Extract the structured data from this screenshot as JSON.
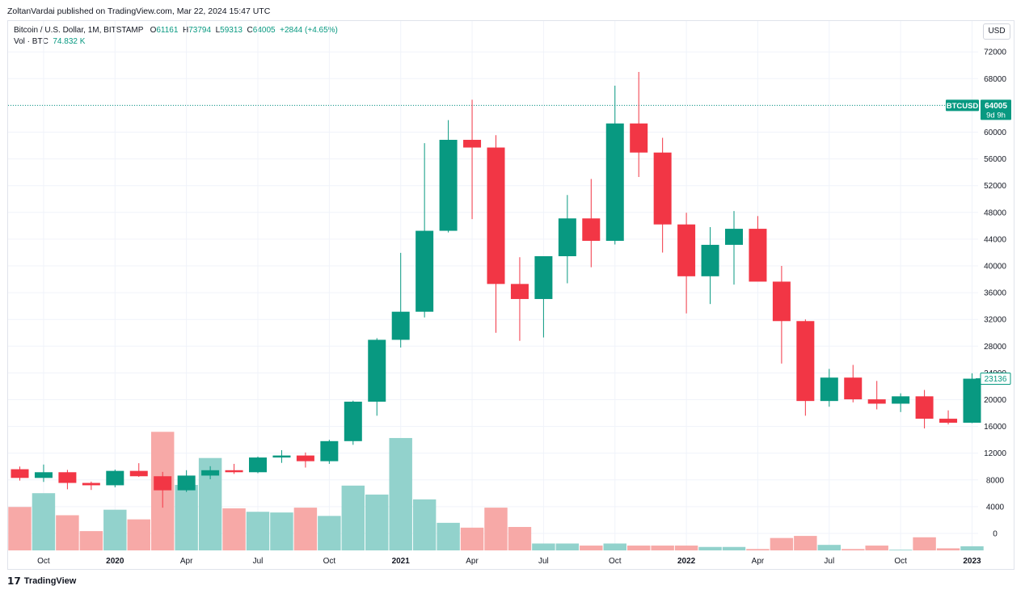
{
  "header": {
    "published": "ZoltanVardai published on TradingView.com, Mar 22, 2024 15:47 UTC"
  },
  "legend": {
    "symbol_line": "Bitcoin / U.S. Dollar, 1M, BITSTAMP",
    "open_label": "O",
    "open": "61161",
    "high_label": "H",
    "high": "73794",
    "low_label": "L",
    "low": "59313",
    "close_label": "C",
    "close": "64005",
    "change": "+2844 (+4.65%)",
    "vol_label": "Vol · BTC",
    "vol_value": "74.832 K"
  },
  "currency_button": "USD",
  "price_tags": {
    "symbol": "BTCUSD",
    "last_price": "64005",
    "countdown": "9d 9h",
    "crosshair_price": "23136"
  },
  "footer": {
    "brand": "TradingView"
  },
  "colors": {
    "up": "#089981",
    "down": "#f23645",
    "up_volume": "#92d2cc",
    "down_volume": "#f7a9a7",
    "grid": "#f0f3fa"
  },
  "chart_data": {
    "type": "candlestick",
    "ylim": [
      0,
      76000
    ],
    "y_ticks": [
      0,
      4000,
      8000,
      12000,
      16000,
      20000,
      24000,
      28000,
      32000,
      36000,
      40000,
      44000,
      48000,
      52000,
      56000,
      60000,
      64000,
      68000,
      72000
    ],
    "x_tick_labels": [
      {
        "index": 1,
        "label": "Oct",
        "bold": false
      },
      {
        "index": 4,
        "label": "2020",
        "bold": true
      },
      {
        "index": 7,
        "label": "Apr",
        "bold": false
      },
      {
        "index": 10,
        "label": "Jul",
        "bold": false
      },
      {
        "index": 13,
        "label": "Oct",
        "bold": false
      },
      {
        "index": 16,
        "label": "2021",
        "bold": true
      },
      {
        "index": 19,
        "label": "Apr",
        "bold": false
      },
      {
        "index": 22,
        "label": "Jul",
        "bold": false
      },
      {
        "index": 25,
        "label": "Oct",
        "bold": false
      },
      {
        "index": 28,
        "label": "2022",
        "bold": true
      },
      {
        "index": 31,
        "label": "Apr",
        "bold": false
      },
      {
        "index": 34,
        "label": "Jul",
        "bold": false
      },
      {
        "index": 37,
        "label": "Oct",
        "bold": false
      },
      {
        "index": 40,
        "label": "2023",
        "bold": true
      }
    ],
    "candles": [
      {
        "o": 9600,
        "h": 10000,
        "l": 7900,
        "c": 8300
      },
      {
        "o": 8300,
        "h": 10300,
        "l": 7700,
        "c": 9150
      },
      {
        "o": 9150,
        "h": 9500,
        "l": 6600,
        "c": 7550
      },
      {
        "o": 7550,
        "h": 7750,
        "l": 6500,
        "c": 7200
      },
      {
        "o": 7200,
        "h": 9550,
        "l": 6900,
        "c": 9350
      },
      {
        "o": 9350,
        "h": 10500,
        "l": 8450,
        "c": 8550
      },
      {
        "o": 8550,
        "h": 9200,
        "l": 3850,
        "c": 6450
      },
      {
        "o": 6450,
        "h": 9450,
        "l": 6200,
        "c": 8650
      },
      {
        "o": 8650,
        "h": 10050,
        "l": 8100,
        "c": 9450
      },
      {
        "o": 9450,
        "h": 10400,
        "l": 8900,
        "c": 9150
      },
      {
        "o": 9150,
        "h": 11500,
        "l": 9000,
        "c": 11350
      },
      {
        "o": 11350,
        "h": 12450,
        "l": 10550,
        "c": 11650
      },
      {
        "o": 11650,
        "h": 12100,
        "l": 9850,
        "c": 10800
      },
      {
        "o": 10800,
        "h": 14000,
        "l": 10400,
        "c": 13800
      },
      {
        "o": 13800,
        "h": 19850,
        "l": 13250,
        "c": 19700
      },
      {
        "o": 19700,
        "h": 29200,
        "l": 17600,
        "c": 28950
      },
      {
        "o": 28950,
        "h": 41950,
        "l": 27800,
        "c": 33150
      },
      {
        "o": 33150,
        "h": 58350,
        "l": 32300,
        "c": 45250
      },
      {
        "o": 45250,
        "h": 61800,
        "l": 45000,
        "c": 58850
      },
      {
        "o": 58850,
        "h": 64850,
        "l": 47000,
        "c": 57700
      },
      {
        "o": 57700,
        "h": 59550,
        "l": 30000,
        "c": 37300
      },
      {
        "o": 37300,
        "h": 41300,
        "l": 28800,
        "c": 35050
      },
      {
        "o": 35050,
        "h": 41450,
        "l": 29300,
        "c": 41450
      },
      {
        "o": 41450,
        "h": 50600,
        "l": 37400,
        "c": 47100
      },
      {
        "o": 47100,
        "h": 53000,
        "l": 39800,
        "c": 43750
      },
      {
        "o": 43750,
        "h": 66950,
        "l": 43200,
        "c": 61300
      },
      {
        "o": 61300,
        "h": 69000,
        "l": 53300,
        "c": 56950
      },
      {
        "o": 56950,
        "h": 59150,
        "l": 42000,
        "c": 46200
      },
      {
        "o": 46200,
        "h": 47950,
        "l": 32900,
        "c": 38450
      },
      {
        "o": 38450,
        "h": 45800,
        "l": 34300,
        "c": 43150
      },
      {
        "o": 43150,
        "h": 48200,
        "l": 37200,
        "c": 45550
      },
      {
        "o": 45550,
        "h": 47450,
        "l": 37700,
        "c": 37650
      },
      {
        "o": 37650,
        "h": 40000,
        "l": 25400,
        "c": 31750
      },
      {
        "o": 31750,
        "h": 32000,
        "l": 17600,
        "c": 19800
      },
      {
        "o": 19800,
        "h": 24600,
        "l": 18950,
        "c": 23300
      },
      {
        "o": 23300,
        "h": 25200,
        "l": 19600,
        "c": 20050
      },
      {
        "o": 20050,
        "h": 22800,
        "l": 18550,
        "c": 19400
      },
      {
        "o": 19400,
        "h": 20950,
        "l": 18150,
        "c": 20500
      },
      {
        "o": 20500,
        "h": 21450,
        "l": 15700,
        "c": 17150
      },
      {
        "o": 17150,
        "h": 18400,
        "l": 16300,
        "c": 16550
      },
      {
        "o": 16550,
        "h": 23950,
        "l": 16500,
        "c": 23136
      }
    ],
    "volume_btc": [
      {
        "v": 63000,
        "up": false
      },
      {
        "v": 83000,
        "up": true
      },
      {
        "v": 51000,
        "up": false
      },
      {
        "v": 28000,
        "up": false
      },
      {
        "v": 59000,
        "up": true
      },
      {
        "v": 45000,
        "up": false
      },
      {
        "v": 172000,
        "up": false
      },
      {
        "v": 95000,
        "up": true
      },
      {
        "v": 134000,
        "up": true
      },
      {
        "v": 61000,
        "up": false
      },
      {
        "v": 56000,
        "up": true
      },
      {
        "v": 55000,
        "up": true
      },
      {
        "v": 62000,
        "up": false
      },
      {
        "v": 50000,
        "up": true
      },
      {
        "v": 94000,
        "up": true
      },
      {
        "v": 81000,
        "up": true
      },
      {
        "v": 163000,
        "up": true
      },
      {
        "v": 74000,
        "up": true
      },
      {
        "v": 40000,
        "up": true
      },
      {
        "v": 33000,
        "up": false
      },
      {
        "v": 62000,
        "up": false
      },
      {
        "v": 34000,
        "up": false
      },
      {
        "v": 10000,
        "up": true
      },
      {
        "v": 10000,
        "up": true
      },
      {
        "v": 7000,
        "up": false
      },
      {
        "v": 10000,
        "up": true
      },
      {
        "v": 7000,
        "up": false
      },
      {
        "v": 7000,
        "up": false
      },
      {
        "v": 7000,
        "up": false
      },
      {
        "v": 5000,
        "up": true
      },
      {
        "v": 5000,
        "up": true
      },
      {
        "v": 2000,
        "up": false
      },
      {
        "v": 18000,
        "up": false
      },
      {
        "v": 21000,
        "up": false
      },
      {
        "v": 8000,
        "up": true
      },
      {
        "v": 2000,
        "up": false
      },
      {
        "v": 7000,
        "up": false
      },
      {
        "v": 1000,
        "up": true
      },
      {
        "v": 19000,
        "up": false
      },
      {
        "v": 3000,
        "up": false
      },
      {
        "v": 6000,
        "up": true
      }
    ],
    "last_price_line": 64005
  }
}
